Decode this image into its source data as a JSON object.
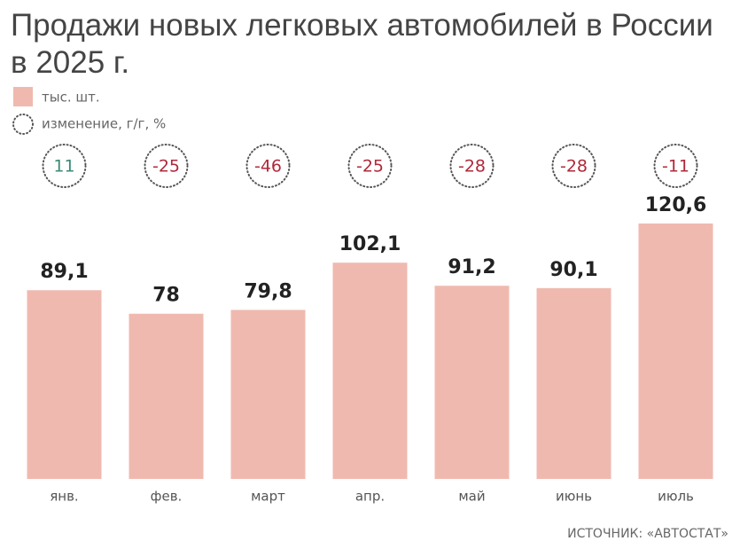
{
  "chart_data": {
    "type": "bar",
    "title": "Продажи новых легковых автомобилей в России в 2025 г.",
    "categories": [
      "янв.",
      "фев.",
      "март",
      "апр.",
      "май",
      "июнь",
      "июль"
    ],
    "series": [
      {
        "name": "тыс. шт.",
        "color": "#f0b9af",
        "values": [
          89.1,
          78,
          79.8,
          102.1,
          91.2,
          90.1,
          120.6
        ],
        "value_labels": [
          "89,1",
          "78",
          "79,8",
          "102,1",
          "91,2",
          "90,1",
          "120,6"
        ]
      },
      {
        "name": "изменение, г/г, %",
        "positive_color": "#3b8a78",
        "negative_color": "#b0283a",
        "values": [
          11,
          -25,
          -46,
          -25,
          -28,
          -28,
          -11
        ]
      }
    ],
    "source": "ИСТОЧНИК: «АВТОСТАТ»"
  }
}
